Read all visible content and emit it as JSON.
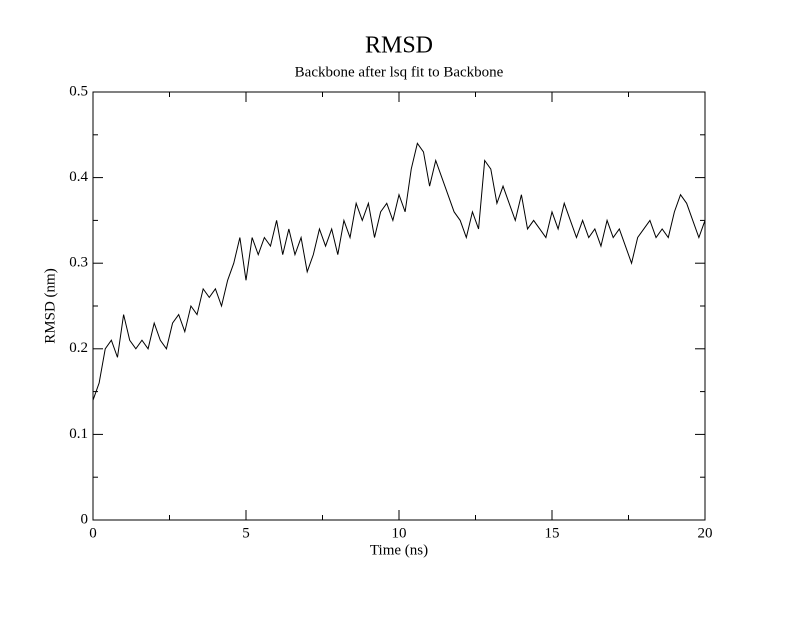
{
  "chart_data": {
    "type": "line",
    "title": "RMSD",
    "subtitle": "Backbone after lsq fit to Backbone",
    "x_label": "Time (ns)",
    "y_label": "RMSD (nm)",
    "x": [
      0,
      0.2,
      0.4,
      0.6,
      0.8,
      1,
      1.2,
      1.4,
      1.6,
      1.8,
      2,
      2.2,
      2.4,
      2.6,
      2.8,
      3,
      3.2,
      3.4,
      3.6,
      3.8,
      4,
      4.2,
      4.4,
      4.6,
      4.8,
      5,
      5.2,
      5.4,
      5.6,
      5.8,
      6,
      6.2,
      6.4,
      6.6,
      6.8,
      7,
      7.2,
      7.4,
      7.6,
      7.8,
      8,
      8.2,
      8.4,
      8.6,
      8.8,
      9,
      9.2,
      9.4,
      9.6,
      9.8,
      10,
      10.2,
      10.4,
      10.6,
      10.8,
      11,
      11.2,
      11.4,
      11.6,
      11.8,
      12,
      12.2,
      12.4,
      12.6,
      12.8,
      13,
      13.2,
      13.4,
      13.6,
      13.8,
      14,
      14.2,
      14.4,
      14.6,
      14.8,
      15,
      15.2,
      15.4,
      15.6,
      15.8,
      16,
      16.2,
      16.4,
      16.6,
      16.8,
      17,
      17.2,
      17.4,
      17.6,
      17.8,
      18,
      18.2,
      18.4,
      18.6,
      18.8,
      19,
      19.2,
      19.4,
      19.6,
      19.8,
      20
    ],
    "series": [
      {
        "color": "#000000",
        "values": [
          0.14,
          0.16,
          0.2,
          0.21,
          0.19,
          0.24,
          0.21,
          0.2,
          0.21,
          0.2,
          0.23,
          0.21,
          0.2,
          0.23,
          0.24,
          0.22,
          0.25,
          0.24,
          0.27,
          0.26,
          0.27,
          0.25,
          0.28,
          0.3,
          0.33,
          0.28,
          0.33,
          0.31,
          0.33,
          0.32,
          0.35,
          0.31,
          0.34,
          0.31,
          0.33,
          0.29,
          0.31,
          0.34,
          0.32,
          0.34,
          0.31,
          0.35,
          0.33,
          0.37,
          0.35,
          0.37,
          0.33,
          0.36,
          0.37,
          0.35,
          0.38,
          0.36,
          0.41,
          0.44,
          0.43,
          0.39,
          0.42,
          0.4,
          0.38,
          0.36,
          0.35,
          0.33,
          0.36,
          0.34,
          0.42,
          0.41,
          0.37,
          0.39,
          0.37,
          0.35,
          0.38,
          0.34,
          0.35,
          0.34,
          0.33,
          0.36,
          0.34,
          0.37,
          0.35,
          0.33,
          0.35,
          0.33,
          0.34,
          0.32,
          0.35,
          0.33,
          0.34,
          0.32,
          0.3,
          0.33,
          0.34,
          0.35,
          0.33,
          0.34,
          0.33,
          0.36,
          0.38,
          0.37,
          0.35,
          0.33,
          0.35
        ]
      }
    ],
    "xlim": [
      0,
      20
    ],
    "xticks": [
      0,
      5,
      10,
      15,
      20
    ],
    "ylim": [
      0,
      0.5
    ],
    "yticks": [
      0,
      0.1,
      0.2,
      0.3,
      0.4,
      0.5
    ]
  }
}
